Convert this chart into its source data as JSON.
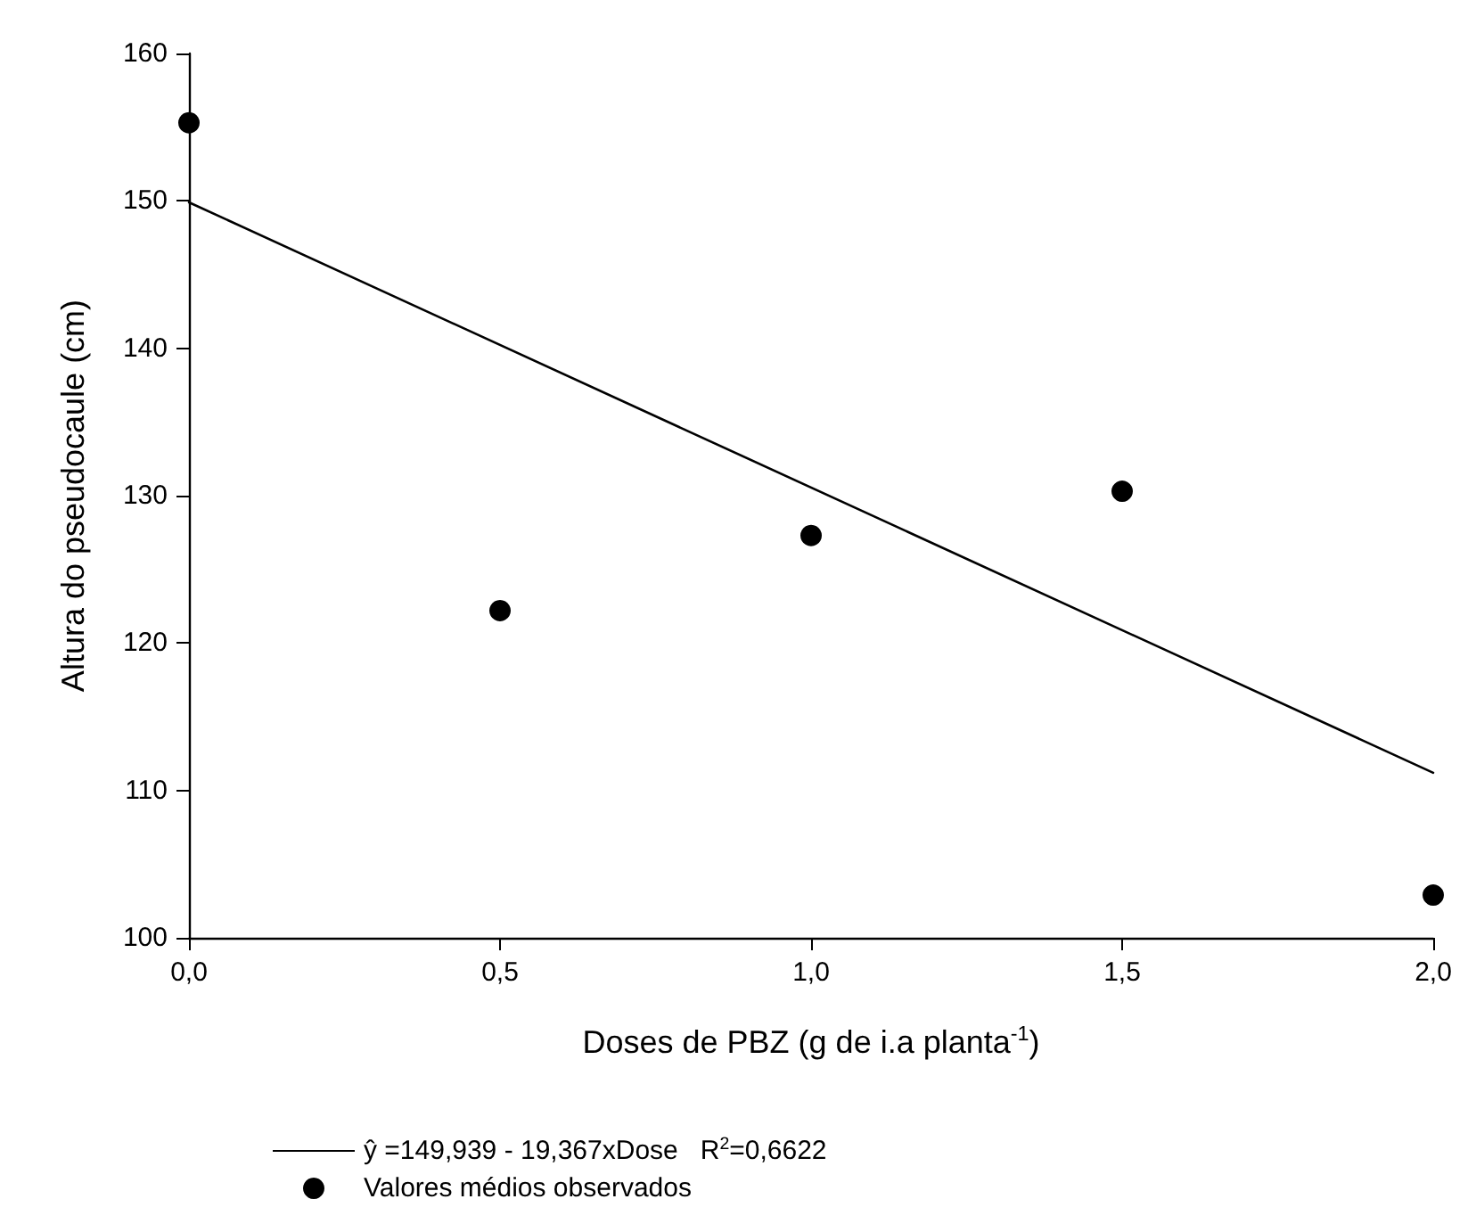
{
  "chart_data": {
    "type": "scatter",
    "xlabel": "Doses de PBZ (g de i.a planta$^{-1}$)",
    "ylabel": "Altura do pseudocaule (cm)",
    "x": [
      0,
      0.5,
      1.0,
      1.5,
      2.0
    ],
    "series": [
      {
        "name": "ŷ =149,939 - 19,367xDose   R$^{2}$=0,6622",
        "type": "line",
        "color": "#000000",
        "x": [
          0,
          2.0
        ],
        "values": [
          149.9,
          111.2
        ],
        "marker": "none",
        "line_style": "solid"
      },
      {
        "name": "Valores médios observados",
        "color": "#000000",
        "values": [
          155.3,
          122.2,
          127.3,
          130.3,
          102.9
        ],
        "marker": "circle"
      }
    ],
    "xlim": [
      0,
      2.0
    ],
    "xticks": [
      {
        "value": 0,
        "label": "0,0"
      },
      {
        "value": 0.5,
        "label": "0,5"
      },
      {
        "value": 1.0,
        "label": "1,0"
      },
      {
        "value": 1.5,
        "label": "1,5"
      },
      {
        "value": 2.0,
        "label": "2,0"
      }
    ],
    "ylim": [
      100,
      160
    ],
    "yticks": [
      100,
      110,
      120,
      130,
      140,
      150,
      160
    ],
    "grid": false,
    "legend": "bottom left"
  }
}
